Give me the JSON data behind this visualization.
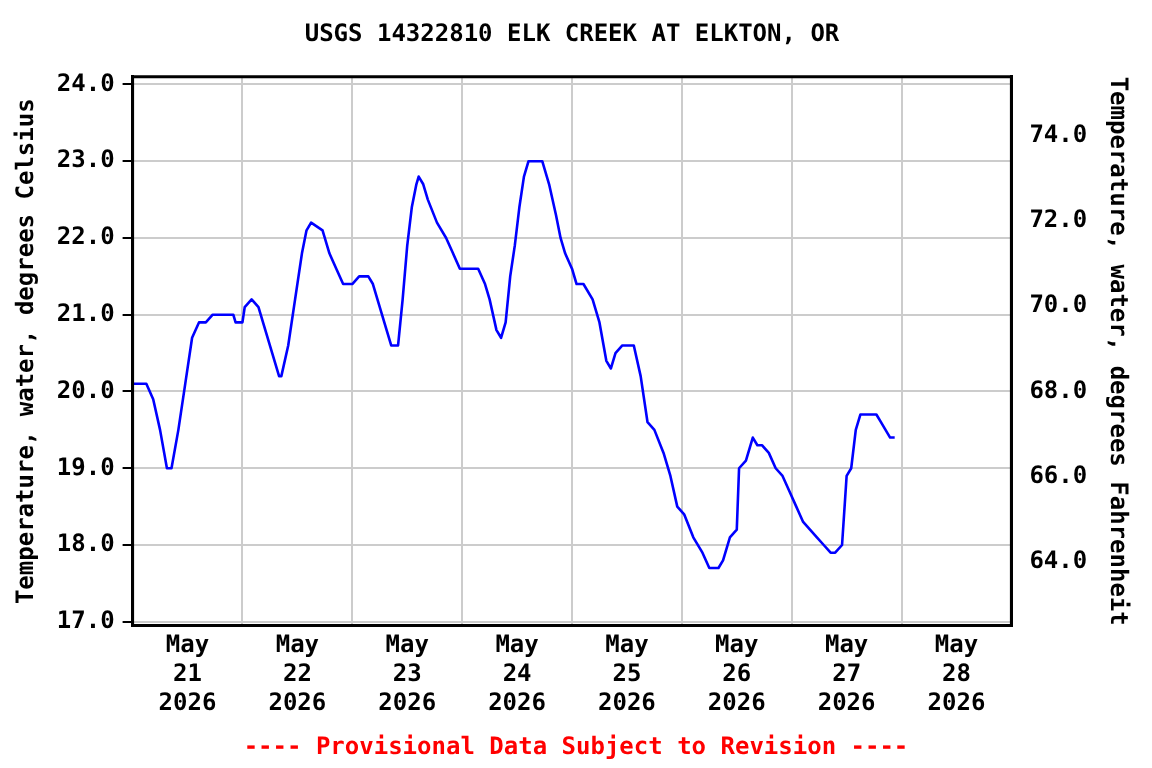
{
  "chart_data": {
    "type": "line",
    "title": "USGS 14322810 ELK CREEK AT ELKTON, OR",
    "ylabel": "Temperature, water, degrees Celsius",
    "y2label": "Temperature, water, degrees Fahrenheit",
    "annotations": [
      "---- Provisional Data Subject to Revision ----"
    ],
    "xlim": [
      "2026-05-21T00:00",
      "2026-05-29T00:00"
    ],
    "xticks": [
      {
        "value": "2026-05-21T12:00",
        "label": "May 21 2026"
      },
      {
        "value": "2026-05-22T00:00",
        "label": null
      },
      {
        "value": "2026-05-22T12:00",
        "label": "May 22 2026"
      },
      {
        "value": "2026-05-23T00:00",
        "label": null
      },
      {
        "value": "2026-05-23T12:00",
        "label": "May 23 2026"
      },
      {
        "value": "2026-05-24T00:00",
        "label": null
      },
      {
        "value": "2026-05-24T12:00",
        "label": "May 24 2026"
      },
      {
        "value": "2026-05-25T00:00",
        "label": null
      },
      {
        "value": "2026-05-25T12:00",
        "label": "May 25 2026"
      },
      {
        "value": "2026-05-26T00:00",
        "label": null
      },
      {
        "value": "2026-05-26T12:00",
        "label": "May 26 2026"
      },
      {
        "value": "2026-05-27T00:00",
        "label": null
      },
      {
        "value": "2026-05-27T12:00",
        "label": "May 27 2026"
      },
      {
        "value": "2026-05-28T00:00",
        "label": null
      },
      {
        "value": "2026-05-28T12:00",
        "label": "May 28 2026"
      }
    ],
    "ylim": [
      16.95,
      24.1
    ],
    "yticks": [
      {
        "value": 17,
        "label": "17.0"
      },
      {
        "value": 18,
        "label": "18.0"
      },
      {
        "value": 19,
        "label": "19.0"
      },
      {
        "value": 20,
        "label": "20.0"
      },
      {
        "value": 21,
        "label": "21.0"
      },
      {
        "value": 22,
        "label": "22.0"
      },
      {
        "value": 23,
        "label": "23.0"
      },
      {
        "value": 24,
        "label": "24.0"
      }
    ],
    "y2lim": [
      62.51,
      75.38
    ],
    "y2ticks": [
      {
        "value": 64,
        "label": "64.0"
      },
      {
        "value": 66,
        "label": "66.0"
      },
      {
        "value": 68,
        "label": "68.0"
      },
      {
        "value": 70,
        "label": "70.0"
      },
      {
        "value": 72,
        "label": "72.0"
      },
      {
        "value": 74,
        "label": "74.0"
      }
    ],
    "grid": true,
    "legend": false,
    "marker": "none",
    "line_style": "solid",
    "series": [
      {
        "color": "#0000ff",
        "x": [
          "2026-05-21T00:00",
          "2026-05-21T03:00",
          "2026-05-21T04:30",
          "2026-05-21T06:00",
          "2026-05-21T07:30",
          "2026-05-21T08:30",
          "2026-05-21T10:00",
          "2026-05-21T11:30",
          "2026-05-21T13:00",
          "2026-05-21T14:30",
          "2026-05-21T16:00",
          "2026-05-21T17:30",
          "2026-05-21T22:00",
          "2026-05-21T22:30",
          "2026-05-22T00:00",
          "2026-05-22T00:30",
          "2026-05-22T02:00",
          "2026-05-22T03:30",
          "2026-05-22T05:00",
          "2026-05-22T06:30",
          "2026-05-22T08:00",
          "2026-05-22T08:30",
          "2026-05-22T10:00",
          "2026-05-22T11:30",
          "2026-05-22T13:00",
          "2026-05-22T14:00",
          "2026-05-22T15:00",
          "2026-05-22T17:30",
          "2026-05-22T19:00",
          "2026-05-22T20:30",
          "2026-05-22T22:00",
          "2026-05-23T00:00",
          "2026-05-23T01:30",
          "2026-05-23T03:30",
          "2026-05-23T04:30",
          "2026-05-23T06:00",
          "2026-05-23T07:30",
          "2026-05-23T08:30",
          "2026-05-23T10:00",
          "2026-05-23T11:00",
          "2026-05-23T12:00",
          "2026-05-23T13:00",
          "2026-05-23T14:00",
          "2026-05-23T14:30",
          "2026-05-23T15:30",
          "2026-05-23T16:30",
          "2026-05-23T18:30",
          "2026-05-23T20:30",
          "2026-05-23T22:00",
          "2026-05-23T23:30",
          "2026-05-24T03:30",
          "2026-05-24T05:00",
          "2026-05-24T06:00",
          "2026-05-24T07:30",
          "2026-05-24T08:30",
          "2026-05-24T09:30",
          "2026-05-24T10:30",
          "2026-05-24T11:30",
          "2026-05-24T12:30",
          "2026-05-24T13:30",
          "2026-05-24T14:30",
          "2026-05-24T17:30",
          "2026-05-24T19:00",
          "2026-05-24T20:30",
          "2026-05-24T21:30",
          "2026-05-24T22:30",
          "2026-05-25T00:00",
          "2026-05-25T01:00",
          "2026-05-25T02:30",
          "2026-05-25T04:30",
          "2026-05-25T06:00",
          "2026-05-25T07:30",
          "2026-05-25T08:30",
          "2026-05-25T09:30",
          "2026-05-25T11:00",
          "2026-05-25T13:30",
          "2026-05-25T15:00",
          "2026-05-25T16:30",
          "2026-05-25T18:00",
          "2026-05-25T20:00",
          "2026-05-25T21:30",
          "2026-05-25T23:00",
          "2026-05-26T00:30",
          "2026-05-26T02:30",
          "2026-05-26T04:30",
          "2026-05-26T06:00",
          "2026-05-26T08:00",
          "2026-05-26T09:00",
          "2026-05-26T10:30",
          "2026-05-26T12:00",
          "2026-05-26T12:30",
          "2026-05-26T14:00",
          "2026-05-26T15:30",
          "2026-05-26T16:30",
          "2026-05-26T17:30",
          "2026-05-26T19:00",
          "2026-05-26T20:30",
          "2026-05-26T22:00",
          "2026-05-26T23:30",
          "2026-05-27T01:00",
          "2026-05-27T02:30",
          "2026-05-27T04:00",
          "2026-05-27T05:30",
          "2026-05-27T07:00",
          "2026-05-27T08:30",
          "2026-05-27T09:30",
          "2026-05-27T11:00",
          "2026-05-27T12:00",
          "2026-05-27T13:00",
          "2026-05-27T14:00",
          "2026-05-27T15:00",
          "2026-05-27T16:30",
          "2026-05-27T18:30",
          "2026-05-27T19:30",
          "2026-05-27T20:30",
          "2026-05-27T21:30",
          "2026-05-27T22:30"
        ],
        "values": [
          20.1,
          20.1,
          19.9,
          19.5,
          19.0,
          19.0,
          19.5,
          20.1,
          20.7,
          20.9,
          20.9,
          21.0,
          21.0,
          20.9,
          20.9,
          21.1,
          21.2,
          21.1,
          20.8,
          20.5,
          20.2,
          20.2,
          20.6,
          21.2,
          21.8,
          22.1,
          22.2,
          22.1,
          21.8,
          21.6,
          21.4,
          21.4,
          21.5,
          21.5,
          21.4,
          21.1,
          20.8,
          20.6,
          20.6,
          21.2,
          21.9,
          22.4,
          22.7,
          22.8,
          22.7,
          22.5,
          22.2,
          22.0,
          21.8,
          21.6,
          21.6,
          21.4,
          21.2,
          20.8,
          20.7,
          20.9,
          21.5,
          21.9,
          22.4,
          22.8,
          23.0,
          23.0,
          22.7,
          22.3,
          22.0,
          21.8,
          21.6,
          21.4,
          21.4,
          21.2,
          20.9,
          20.4,
          20.3,
          20.5,
          20.6,
          20.6,
          20.2,
          19.6,
          19.5,
          19.2,
          18.9,
          18.5,
          18.4,
          18.1,
          17.9,
          17.7,
          17.7,
          17.8,
          18.1,
          18.2,
          19.0,
          19.1,
          19.4,
          19.3,
          19.3,
          19.2,
          19.0,
          18.9,
          18.7,
          18.5,
          18.3,
          18.2,
          18.1,
          18.0,
          17.9,
          17.9,
          18.0,
          18.9,
          19.0,
          19.5,
          19.7,
          19.7,
          19.7,
          19.6,
          19.5,
          19.4,
          19.4
        ]
      }
    ]
  }
}
